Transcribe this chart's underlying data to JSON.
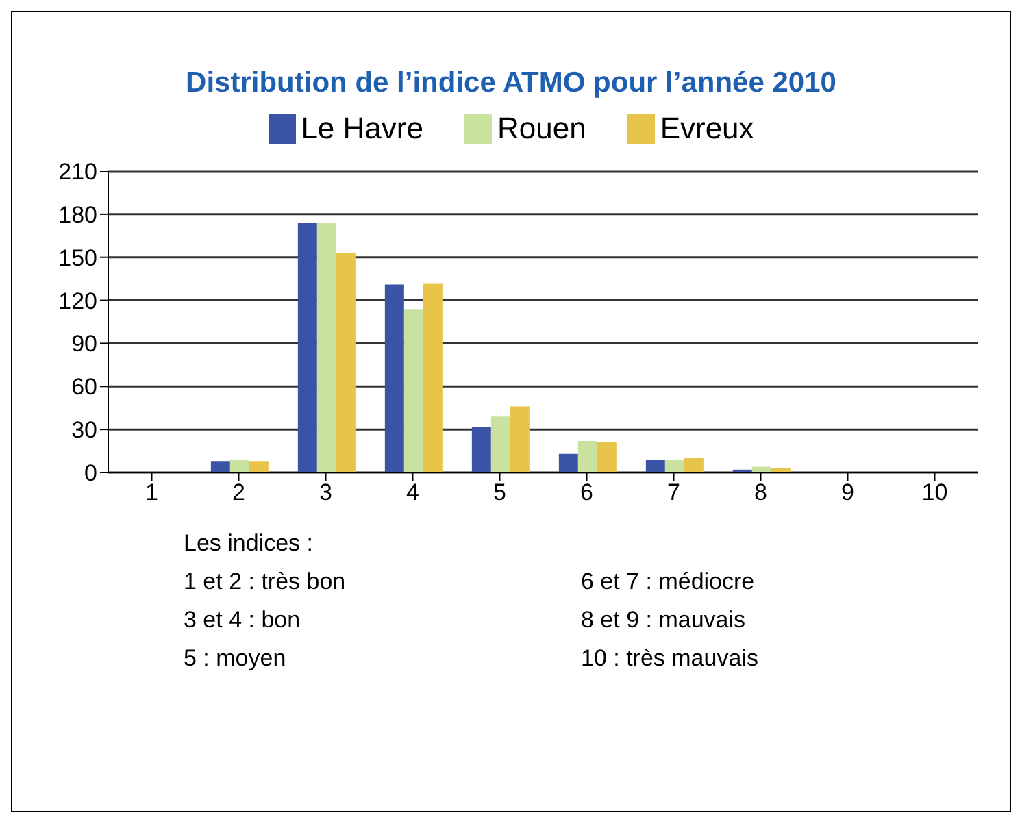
{
  "chart_data": {
    "type": "bar",
    "title": "Distribution de l’indice ATMO pour l’année 2010",
    "categories": [
      "1",
      "2",
      "3",
      "4",
      "5",
      "6",
      "7",
      "8",
      "9",
      "10"
    ],
    "series": [
      {
        "name": "Le Havre",
        "color": "#3a53a4",
        "values": [
          0,
          8,
          174,
          131,
          32,
          13,
          9,
          2,
          0,
          0
        ]
      },
      {
        "name": "Rouen",
        "color": "#c9e2a0",
        "values": [
          0,
          9,
          174,
          114,
          39,
          22,
          9,
          4,
          0,
          0
        ]
      },
      {
        "name": "Evreux",
        "color": "#e8c54a",
        "values": [
          0,
          8,
          153,
          132,
          46,
          21,
          10,
          3,
          0,
          0
        ]
      }
    ],
    "ylim": [
      0,
      210
    ],
    "yticks": [
      0,
      30,
      60,
      90,
      120,
      150,
      180,
      210
    ],
    "grid": "y",
    "legend": "top",
    "annotations": [
      "Les indices :",
      "1 et 2 : très bon",
      "3 et 4 : bon",
      "5 : moyen",
      "6 et 7 : médiocre",
      "8 et 9 : mauvais",
      "10 : très mauvais"
    ]
  }
}
